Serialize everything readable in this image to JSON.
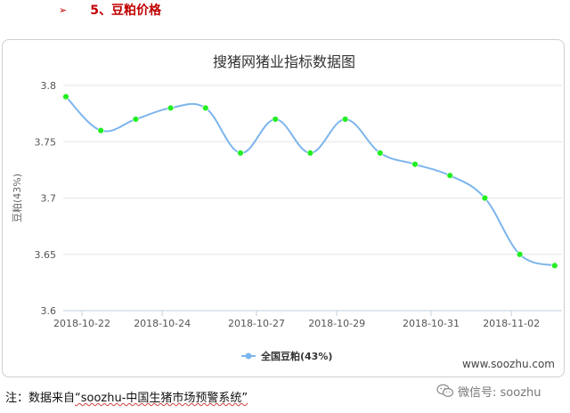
{
  "heading": {
    "marker": "➢",
    "text": "5、豆粕价格"
  },
  "chart_data": {
    "type": "line",
    "title": "搜猪网猪业指标数据图",
    "ylabel": "豆粕(43%)",
    "xlabel": "",
    "ylim": [
      3.6,
      3.8
    ],
    "yticks": [
      "3.6",
      "3.65",
      "3.7",
      "3.75",
      "3.8"
    ],
    "xtick_labels": [
      "2018-10-22",
      "2018-10-24",
      "2018-10-27",
      "2018-10-29",
      "2018-10-31",
      "2018-11-02"
    ],
    "series": [
      {
        "name": "全国豆粕(43%)",
        "color": "#7cb5ec",
        "marker_color": "#22ee22",
        "values": [
          3.79,
          3.76,
          3.77,
          3.78,
          3.78,
          3.74,
          3.77,
          3.74,
          3.77,
          3.74,
          3.73,
          3.72,
          3.7,
          3.65,
          3.64
        ]
      }
    ],
    "legend_position": "bottom-center",
    "grid": "horizontal",
    "watermark": "www.soozhu.com"
  },
  "footnote": {
    "prefix": "注：数据来自",
    "source": "“soozhu-中国生猪市场预警系统”"
  },
  "wechat": {
    "icon": "wechat-icon",
    "label": "微信号: soozhu"
  }
}
